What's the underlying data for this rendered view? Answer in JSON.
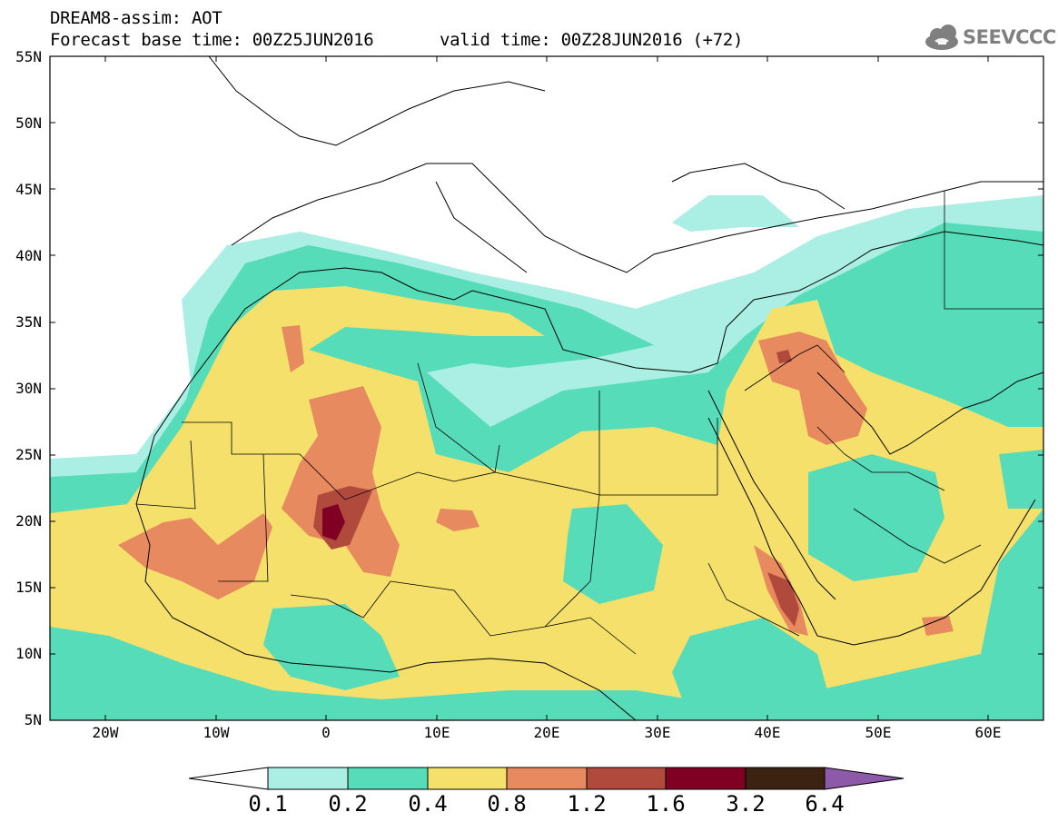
{
  "header": {
    "title": "DREAM8-assim: AOT",
    "base_time": "Forecast base time: 00Z25JUN2016",
    "valid_time": "valid time: 00Z28JUN2016 (+72)"
  },
  "logo": {
    "text": "SEEVCCC",
    "icon": "cloud-icon",
    "color": "#7f7f7f"
  },
  "map": {
    "region": {
      "lon_range": [
        -25,
        65
      ],
      "lat_range": [
        5,
        55
      ]
    },
    "lat_labels": [
      "55N",
      "50N",
      "45N",
      "40N",
      "35N",
      "30N",
      "25N",
      "20N",
      "15N",
      "10N",
      "5N"
    ],
    "lon_labels": [
      "20W",
      "10W",
      "0",
      "10E",
      "20E",
      "30E",
      "40E",
      "50E",
      "60E"
    ]
  },
  "colorbar": {
    "labels": [
      "0.1",
      "0.2",
      "0.4",
      "0.8",
      "1.2",
      "1.6",
      "3.2",
      "6.4"
    ],
    "colors": {
      "below": "#ffffff",
      "c1": "#aaeee4",
      "c2": "#56dcb8",
      "c3": "#f4e06a",
      "c4": "#e88a60",
      "c5": "#b04a3c",
      "c6": "#800024",
      "c7": "#3c2210",
      "above": "#8c5aa8"
    }
  }
}
